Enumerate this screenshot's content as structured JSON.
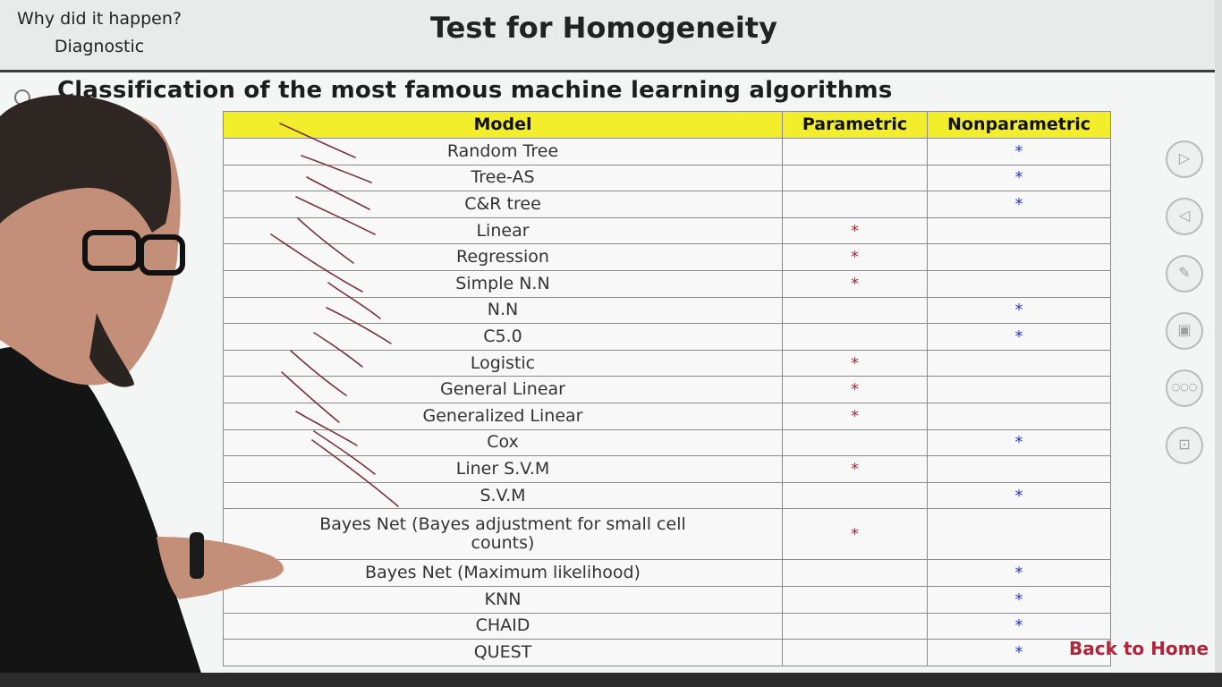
{
  "header": {
    "crumb_line1": "Why did it happen?",
    "crumb_line2": "Diagnostic",
    "title": "Test for Homogeneity"
  },
  "subtitle": "Classification of the most famous machine learning algorithms",
  "table": {
    "columns": [
      "Model",
      "Parametric",
      "Nonparametric"
    ],
    "mark": "*",
    "rows": [
      {
        "model": "Random Tree",
        "parametric": "",
        "nonparametric": "*"
      },
      {
        "model": "Tree-AS",
        "parametric": "",
        "nonparametric": "*"
      },
      {
        "model": "C&R tree",
        "parametric": "",
        "nonparametric": "*"
      },
      {
        "model": "Linear",
        "parametric": "*",
        "nonparametric": ""
      },
      {
        "model": "Regression",
        "parametric": "*",
        "nonparametric": ""
      },
      {
        "model": "Simple N.N",
        "parametric": "*",
        "nonparametric": ""
      },
      {
        "model": "N.N",
        "parametric": "",
        "nonparametric": "*"
      },
      {
        "model": "C5.0",
        "parametric": "",
        "nonparametric": "*"
      },
      {
        "model": "Logistic",
        "parametric": "*",
        "nonparametric": ""
      },
      {
        "model": "General Linear",
        "parametric": "*",
        "nonparametric": ""
      },
      {
        "model": "Generalized Linear",
        "parametric": "*",
        "nonparametric": ""
      },
      {
        "model": "Cox",
        "parametric": "",
        "nonparametric": "*"
      },
      {
        "model": "Liner S.V.M",
        "parametric": "*",
        "nonparametric": ""
      },
      {
        "model": "S.V.M",
        "parametric": "",
        "nonparametric": "*"
      },
      {
        "model": "Bayes Net (Bayes adjustment for small cell counts)",
        "parametric": "*",
        "nonparametric": ""
      },
      {
        "model": "Bayes Net (Maximum likelihood)",
        "parametric": "",
        "nonparametric": "*"
      },
      {
        "model": "KNN",
        "parametric": "",
        "nonparametric": "*"
      },
      {
        "model": "CHAID",
        "parametric": "",
        "nonparametric": "*"
      },
      {
        "model": "QUEST",
        "parametric": "",
        "nonparametric": "*"
      }
    ]
  },
  "controls": [
    {
      "name": "next-icon",
      "glyph": "▷"
    },
    {
      "name": "previous-icon",
      "glyph": "◁"
    },
    {
      "name": "pen-icon",
      "glyph": "✎"
    },
    {
      "name": "screen-icon",
      "glyph": "▣"
    },
    {
      "name": "more-icon",
      "glyph": "○○○"
    },
    {
      "name": "presentation-icon",
      "glyph": "⊡"
    }
  ],
  "back_home": "Back to Home",
  "colors": {
    "header_yellow": "#f3ee2c",
    "parametric_mark": "#c2203a",
    "nonparametric_mark": "#2439c8",
    "link": "#b4233a"
  }
}
